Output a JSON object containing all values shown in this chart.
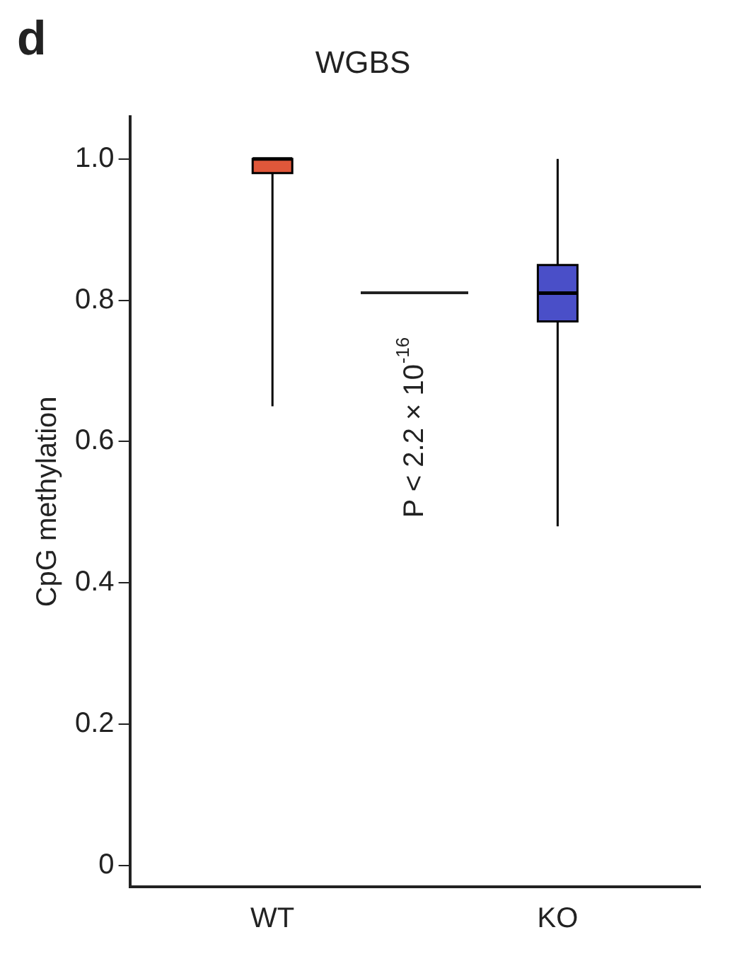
{
  "chart_data": {
    "type": "box",
    "title": "WGBS",
    "ylabel": "CpG methylation",
    "categories": [
      "WT",
      "KO"
    ],
    "colors": [
      "#e0573a",
      "#4a4fc8"
    ],
    "boxes": [
      {
        "low": 0.65,
        "q1": 0.98,
        "median": 1.0,
        "q3": 1.0,
        "high": 1.0
      },
      {
        "low": 0.48,
        "q1": 0.77,
        "median": 0.81,
        "q3": 0.85,
        "high": 1.0
      }
    ],
    "ylim": [
      -0.03,
      1.06
    ],
    "yticks": [
      0,
      0.2,
      0.4,
      0.6,
      0.8,
      {
        "value": 1,
        "label": "1.0"
      }
    ],
    "grid": false,
    "legend": false,
    "annotations": [
      "d",
      "P < 2.2 × 10$^{-16}$"
    ]
  }
}
